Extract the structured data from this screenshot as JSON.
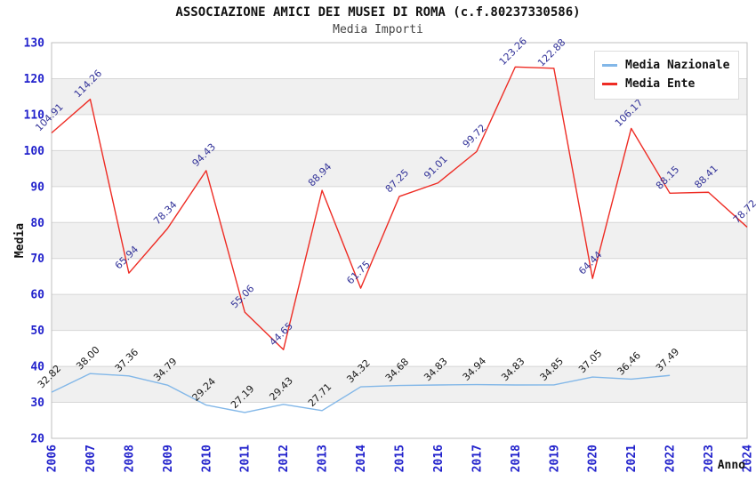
{
  "header": {
    "title": "ASSOCIAZIONE AMICI DEI MUSEI DI ROMA (c.f.80237330586)",
    "subtitle": "Media Importi"
  },
  "chart_data": {
    "type": "line",
    "x": [
      2006,
      2007,
      2008,
      2009,
      2010,
      2011,
      2012,
      2013,
      2014,
      2015,
      2016,
      2017,
      2018,
      2019,
      2020,
      2021,
      2022,
      2023,
      2024
    ],
    "series": [
      {
        "name": "Media Nazionale",
        "color": "#82b7e8",
        "label_color": "#1a1a1a",
        "values": [
          32.82,
          38.0,
          37.36,
          34.79,
          29.24,
          27.19,
          29.43,
          27.71,
          34.32,
          34.68,
          34.83,
          34.94,
          34.83,
          34.85,
          37.05,
          36.46,
          37.49,
          null,
          null
        ]
      },
      {
        "name": "Media Ente",
        "color": "#ee2c24",
        "label_color": "#333399",
        "values": [
          104.91,
          114.26,
          65.94,
          78.34,
          94.43,
          55.06,
          44.65,
          88.94,
          61.75,
          87.25,
          91.01,
          99.72,
          123.26,
          122.88,
          64.44,
          106.17,
          88.15,
          88.41,
          78.72
        ]
      }
    ],
    "xlabel": "Anno",
    "ylabel": "Media",
    "ylim": [
      20,
      130
    ],
    "ytick_step": 10,
    "grid": true,
    "legend_position": "top-right",
    "axis_label_color": "#2222cc",
    "band_color": "#f0f0f0",
    "grid_color": "#d6d6d6",
    "border_color": "#bfbfbf"
  }
}
